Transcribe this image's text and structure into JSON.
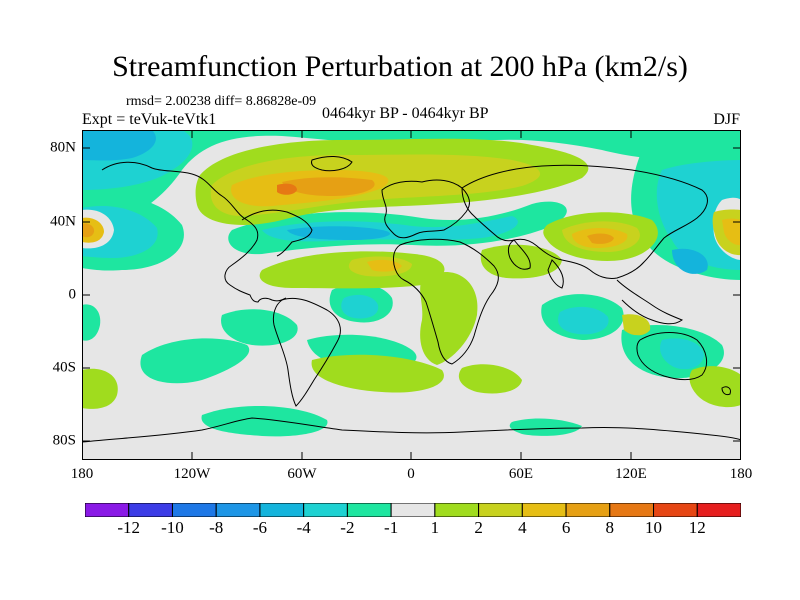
{
  "title": "Streamfunction Perturbation at 200 hPa (km2/s)",
  "stats": "rmsd= 2.00238 diff= 8.86828e-09",
  "left_label": "Expt = teVuk-teVtk1",
  "center_label": "0464kyr BP - 0464kyr BP",
  "right_label": "DJF",
  "x_ticks": [
    "180",
    "120W",
    "60W",
    "0",
    "60E",
    "120E",
    "180"
  ],
  "y_ticks": [
    "80N",
    "40N",
    "0",
    "40S",
    "80S"
  ],
  "colorbar": {
    "labels": [
      "-12",
      "-10",
      "-8",
      "-6",
      "-4",
      "-2",
      "-1",
      "1",
      "2",
      "4",
      "6",
      "8",
      "10",
      "12"
    ],
    "colors": [
      "#8a1ae6",
      "#3c3ce6",
      "#1e78e6",
      "#1e96e6",
      "#14b4dc",
      "#1ed2d2",
      "#1ee6a0",
      "#e6e6e6",
      "#a0dc1e",
      "#c8d21e",
      "#e6be14",
      "#e6a014",
      "#e67814",
      "#e64614",
      "#e61e1e"
    ]
  },
  "map": {
    "background_color": "#e6e6e6",
    "coastline_color": "#000000"
  }
}
